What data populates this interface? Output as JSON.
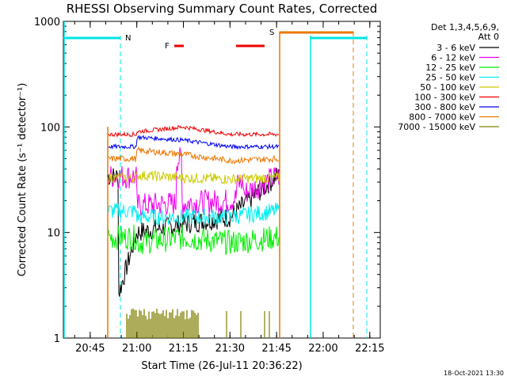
{
  "chart_data": {
    "type": "line",
    "title": "RHESSI Observing Summary Count Rates, Corrected",
    "xlabel": "Start Time (26-Jul-11 20:36:22)",
    "ylabel": "Corrected Count Rate (s⁻¹ detector⁻¹)",
    "yscale": "log",
    "ylim": [
      1,
      1000
    ],
    "xlim_minutes_after_start": [
      0,
      102
    ],
    "x_ticks": [
      "20:45",
      "21:00",
      "21:15",
      "21:30",
      "21:45",
      "22:00",
      "22:15"
    ],
    "y_ticks": [
      "1",
      "10",
      "100",
      "1000"
    ],
    "footer_date": "18-Oct-2021 13:30",
    "legend": {
      "header_lines": [
        "Det 1,3,4,5,6,9,",
        "Att 0"
      ],
      "placement": "right"
    },
    "flags": {
      "N": {
        "label": "N",
        "color": "#00e5e5"
      },
      "F": {
        "label": "F",
        "color": "#ee0000"
      },
      "S": {
        "label": "S",
        "color": "#ee7700"
      }
    },
    "series": [
      {
        "name": "3 - 6 keV",
        "color": "#000000"
      },
      {
        "name": "6 - 12 keV",
        "color": "#ee00ee"
      },
      {
        "name": "12 - 25 keV",
        "color": "#00ee00"
      },
      {
        "name": "25 - 50 keV",
        "color": "#00eeee"
      },
      {
        "name": "50 - 100 keV",
        "color": "#cccc00"
      },
      {
        "name": "100 - 300 keV",
        "color": "#ee0000"
      },
      {
        "name": "300 - 800 keV",
        "color": "#0000ee"
      },
      {
        "name": "800 - 7000 keV",
        "color": "#ee7700"
      },
      {
        "name": "7000 - 15000 keV",
        "color": "#808000"
      }
    ],
    "data_window": {
      "start": "20:54",
      "end": "21:45"
    },
    "series_values": {
      "100 - 300 keV": [
        [
          21.0,
          90
        ],
        [
          21.25,
          100
        ],
        [
          21.5,
          85
        ],
        [
          21.75,
          85
        ]
      ],
      "300 - 800 keV": [
        [
          21.0,
          80
        ],
        [
          21.25,
          75
        ],
        [
          21.5,
          65
        ],
        [
          21.75,
          65
        ]
      ],
      "800 - 7000 keV": [
        [
          21.0,
          60
        ],
        [
          21.25,
          55
        ],
        [
          21.5,
          48
        ],
        [
          21.75,
          50
        ]
      ],
      "50 - 100 keV": [
        [
          21.0,
          35
        ],
        [
          21.25,
          33
        ],
        [
          21.5,
          32
        ],
        [
          21.75,
          33
        ]
      ],
      "6 - 12 keV": [
        [
          21.0,
          18
        ],
        [
          21.25,
          19
        ],
        [
          21.5,
          20
        ],
        [
          21.75,
          34
        ]
      ],
      "25 - 50 keV": [
        [
          21.0,
          14
        ],
        [
          21.25,
          14
        ],
        [
          21.5,
          14
        ],
        [
          21.75,
          16
        ]
      ],
      "3 - 6 keV": [
        [
          20.9,
          2.5
        ],
        [
          21.0,
          10
        ],
        [
          21.25,
          12
        ],
        [
          21.5,
          14
        ],
        [
          21.75,
          34
        ]
      ],
      "12 - 25 keV": [
        [
          21.0,
          8
        ],
        [
          21.25,
          9
        ],
        [
          21.5,
          8
        ],
        [
          21.75,
          9
        ]
      ]
    }
  }
}
